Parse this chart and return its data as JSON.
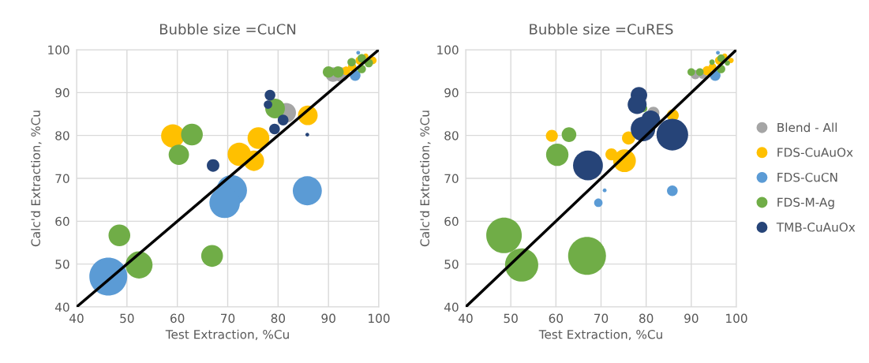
{
  "chart_data": [
    {
      "type": "bubble",
      "title": "Bubble size =CuCN",
      "xlabel": "Test Extraction, %Cu",
      "ylabel": "Calc'd Extraction, %Cu",
      "xlim": [
        40,
        100
      ],
      "ylim": [
        40,
        100
      ],
      "xticks": [
        40,
        50,
        60,
        70,
        80,
        90,
        100
      ],
      "yticks": [
        40,
        50,
        60,
        70,
        80,
        90,
        100
      ],
      "grid": true,
      "series": [
        {
          "color": "#a5a5a5",
          "x": [
            81.6,
            90.9,
            92.5
          ],
          "values": [
            85.3,
            94.2,
            94.2
          ],
          "sizes": [
            0.27,
            0.15,
            0.15
          ]
        },
        {
          "color": "#ffc000",
          "x": [
            59.1,
            72.3,
            76.1,
            75.2,
            85.9,
            93.5,
            94.7,
            96.2,
            97.4,
            98.8
          ],
          "values": [
            79.9,
            75.6,
            79.4,
            74.1,
            84.7,
            95.1,
            96.0,
            97.5,
            98.5,
            97.5
          ],
          "sizes": [
            0.38,
            0.38,
            0.33,
            0.29,
            0.27,
            0.05,
            0.05,
            0.05,
            0.02,
            0.04
          ]
        },
        {
          "color": "#5b9bd5",
          "x": [
            46.3,
            70.8,
            69.4,
            85.8,
            95.3,
            95.9
          ],
          "values": [
            47.1,
            67.2,
            64.3,
            67.1,
            94.0,
            99.3
          ],
          "sizes": [
            1,
            0.65,
            0.65,
            0.59,
            0.08,
            0.01
          ]
        },
        {
          "color": "#70ad47",
          "x": [
            48.5,
            52.4,
            66.9,
            60.3,
            62.9,
            79.4,
            90.0,
            91.9,
            94.6,
            96.6,
            98.0,
            96.6
          ],
          "values": [
            56.7,
            49.8,
            51.9,
            75.5,
            80.2,
            86.3,
            94.8,
            94.8,
            97.1,
            98.0,
            96.9,
            95.5
          ],
          "sizes": [
            0.33,
            0.51,
            0.33,
            0.29,
            0.33,
            0.27,
            0.09,
            0.09,
            0.05,
            0.05,
            0.05,
            0.05
          ]
        },
        {
          "color": "#264478",
          "x": [
            78.4,
            78.0,
            81.0,
            79.3,
            67.1,
            85.8
          ],
          "values": [
            89.4,
            87.2,
            83.6,
            81.5,
            73.0,
            80.2
          ],
          "sizes": [
            0.08,
            0.05,
            0.08,
            0.08,
            0.11,
            0.01
          ]
        },
        {
          "type": "line",
          "color": "#000000",
          "x": [
            40,
            100
          ],
          "values": [
            40,
            100
          ]
        }
      ]
    },
    {
      "type": "bubble",
      "title": "Bubble size =CuRES",
      "xlabel": "Test Extraction, %Cu",
      "ylabel": "Calc'd Extraction, %Cu",
      "xlim": [
        40,
        100
      ],
      "ylim": [
        40,
        100
      ],
      "xticks": [
        40,
        50,
        60,
        70,
        80,
        90,
        100
      ],
      "yticks": [
        40,
        50,
        60,
        70,
        80,
        90,
        100
      ],
      "grid": true,
      "legend": "right",
      "series": [
        {
          "name": "Blend - All",
          "color": "#a5a5a5",
          "x": [
            81.6,
            90.9,
            92.5
          ],
          "values": [
            85.3,
            94.2,
            94.2
          ],
          "sizes": [
            0.1,
            0.06,
            0.05
          ]
        },
        {
          "name": "FDS-CuAuOx",
          "color": "#ffc000",
          "x": [
            59.1,
            72.3,
            76.1,
            75.2,
            85.9,
            93.5,
            94.7,
            96.2,
            97.4,
            98.8
          ],
          "values": [
            79.9,
            75.6,
            79.4,
            74.1,
            84.7,
            95.1,
            96.0,
            97.5,
            98.5,
            97.5
          ],
          "sizes": [
            0.1,
            0.1,
            0.12,
            0.36,
            0.1,
            0.06,
            0.04,
            0.05,
            0.02,
            0.02
          ]
        },
        {
          "name": "FDS-CuCN",
          "color": "#5b9bd5",
          "x": [
            70.8,
            69.4,
            85.8,
            95.3,
            95.9
          ],
          "values": [
            67.2,
            64.3,
            67.1,
            94.0,
            99.3
          ],
          "sizes": [
            0.01,
            0.05,
            0.08,
            0.08,
            0.01
          ]
        },
        {
          "name": "FDS-M-Ag",
          "color": "#70ad47",
          "x": [
            48.5,
            52.4,
            66.9,
            60.3,
            62.9,
            79.4,
            90.0,
            91.9,
            94.6,
            96.6,
            98.0,
            96.6
          ],
          "values": [
            56.7,
            49.8,
            51.9,
            75.5,
            80.2,
            86.3,
            94.8,
            94.8,
            97.1,
            98.0,
            96.9,
            95.5
          ],
          "sizes": [
            0.88,
            0.77,
            1,
            0.35,
            0.15,
            0.04,
            0.04,
            0.04,
            0.02,
            0.04,
            0.02,
            0.05
          ]
        },
        {
          "name": "TMB-CuAuOx",
          "color": "#264478",
          "x": [
            78.4,
            78.0,
            81.0,
            79.3,
            67.1,
            85.8
          ],
          "values": [
            89.4,
            87.2,
            83.6,
            81.5,
            73.0,
            80.2
          ],
          "sizes": [
            0.19,
            0.25,
            0.25,
            0.42,
            0.62,
            0.7
          ]
        },
        {
          "type": "line",
          "color": "#000000",
          "x": [
            40,
            100
          ],
          "values": [
            40,
            100
          ]
        }
      ]
    }
  ]
}
